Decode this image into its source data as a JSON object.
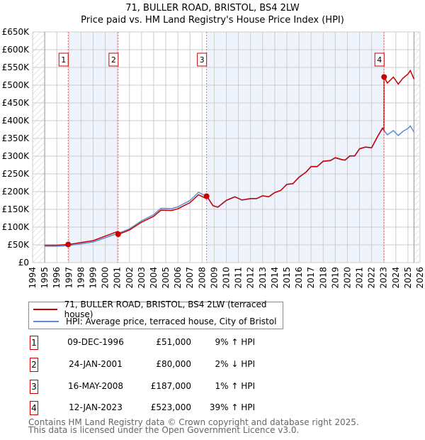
{
  "title": "71, BULLER ROAD, BRISTOL, BS4 2LW",
  "subtitle": "Price paid vs. HM Land Registry's House Price Index (HPI)",
  "chart_data": {
    "type": "line",
    "xlim": [
      1994,
      2026
    ],
    "ylim": [
      0,
      650000
    ],
    "x_ticks": [
      "1994",
      "1995",
      "1996",
      "1997",
      "1998",
      "1999",
      "2000",
      "2001",
      "2002",
      "2003",
      "2004",
      "2005",
      "2006",
      "2007",
      "2008",
      "2009",
      "2010",
      "2011",
      "2012",
      "2013",
      "2014",
      "2015",
      "2016",
      "2017",
      "2018",
      "2019",
      "2020",
      "2021",
      "2022",
      "2023",
      "2024",
      "2025",
      "2026"
    ],
    "y_ticks": [
      "£0",
      "£50K",
      "£100K",
      "£150K",
      "£200K",
      "£250K",
      "£300K",
      "£350K",
      "£400K",
      "£450K",
      "£500K",
      "£550K",
      "£600K",
      "£650K"
    ],
    "hpi_series": {
      "name": "HPI: Average price, terraced house, City of Bristol",
      "color": "#5b8fd4",
      "points": [
        [
          1995,
          46
        ],
        [
          1996,
          46
        ],
        [
          1997,
          48
        ],
        [
          1998,
          53
        ],
        [
          1999,
          58
        ],
        [
          2000,
          70
        ],
        [
          2001,
          82
        ],
        [
          2001.5,
          88
        ],
        [
          2002,
          95
        ],
        [
          2003,
          118
        ],
        [
          2004,
          135
        ],
        [
          2004.6,
          153
        ],
        [
          2005.5,
          152
        ],
        [
          2006,
          157
        ],
        [
          2007,
          175
        ],
        [
          2007.7,
          198
        ],
        [
          2008.4,
          186
        ],
        [
          2008.9,
          160
        ],
        [
          2009.3,
          156
        ],
        [
          2010,
          175
        ],
        [
          2010.7,
          185
        ],
        [
          2011.3,
          176
        ],
        [
          2012,
          180
        ],
        [
          2012.5,
          180
        ],
        [
          2013,
          188
        ],
        [
          2013.5,
          185
        ],
        [
          2014,
          197
        ],
        [
          2014.5,
          203
        ],
        [
          2015,
          220
        ],
        [
          2015.5,
          222
        ],
        [
          2016,
          240
        ],
        [
          2016.6,
          255
        ],
        [
          2017,
          270
        ],
        [
          2017.5,
          270
        ],
        [
          2018,
          285
        ],
        [
          2018.6,
          287
        ],
        [
          2019,
          295
        ],
        [
          2019.5,
          290
        ],
        [
          2019.8,
          288
        ],
        [
          2020.2,
          300
        ],
        [
          2020.6,
          300
        ],
        [
          2021,
          320
        ],
        [
          2021.5,
          325
        ],
        [
          2022,
          323
        ],
        [
          2022.5,
          355
        ],
        [
          2022.9,
          378
        ],
        [
          2023.3,
          360
        ],
        [
          2023.8,
          372
        ],
        [
          2024.2,
          358
        ],
        [
          2024.6,
          370
        ],
        [
          2025,
          378
        ],
        [
          2025.2,
          385
        ],
        [
          2025.5,
          368
        ]
      ]
    },
    "property_series": {
      "name": "71, BULLER ROAD, BRISTOL, BS4 2LW (terraced house)",
      "color": "#cc0000"
    },
    "sales": [
      {
        "n": "1",
        "x": 1996.94,
        "date": "09-DEC-1996",
        "price": "£51,000",
        "value": 51,
        "hpi": "9% ↑ HPI"
      },
      {
        "n": "2",
        "x": 2001.07,
        "date": "24-JAN-2001",
        "price": "£80,000",
        "value": 80,
        "hpi": "2% ↓ HPI"
      },
      {
        "n": "3",
        "x": 2008.37,
        "date": "16-MAY-2008",
        "price": "£187,000",
        "value": 187,
        "hpi": "1% ↑ HPI"
      },
      {
        "n": "4",
        "x": 2023.03,
        "date": "12-JAN-2023",
        "price": "£523,000",
        "value": 523,
        "hpi": "39% ↑ HPI"
      }
    ]
  },
  "legend": {
    "property": "71, BULLER ROAD, BRISTOL, BS4 2LW (terraced house)",
    "hpi": "HPI: Average price, terraced house, City of Bristol"
  },
  "footer": {
    "line1": "Contains HM Land Registry data © Crown copyright and database right 2025.",
    "line2": "This data is licensed under the Open Government Licence v3.0."
  }
}
